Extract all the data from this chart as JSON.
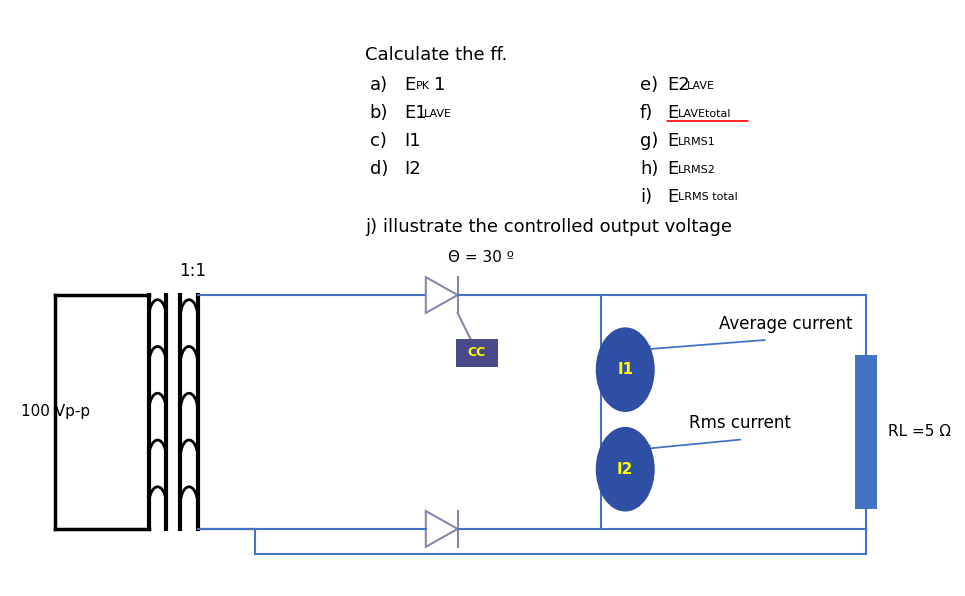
{
  "bg_color": "#ffffff",
  "circuit_color": "#4472c4",
  "transformer_color": "#000000",
  "ellipse_color": "#2e4fa3",
  "ellipse_text_color": "#ffff00",
  "cc_box_color": "#4a4a8a",
  "cc_text_color": "#ffff00",
  "label_100vpp": "100 Vp-p",
  "label_ratio": "1:1",
  "label_theta": "Θ = 30 º",
  "label_avg": "Average current",
  "label_rms": "Rms current",
  "label_rl": "RL =5 Ω",
  "fs_main": 13,
  "fs_sub": 8,
  "fs_circuit": 12
}
